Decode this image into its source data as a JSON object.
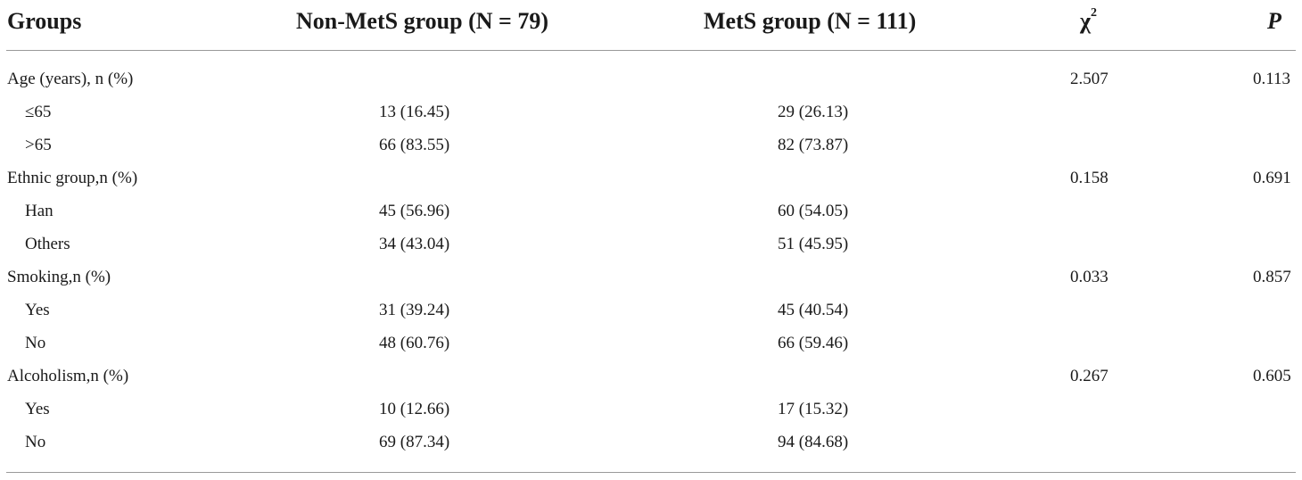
{
  "table": {
    "headers": {
      "groups": "Groups",
      "non_mets": "Non-MetS group (N = 79)",
      "mets": "MetS group (N = 111)",
      "chi_symbol": "χ",
      "chi_exp": "2",
      "p": "P"
    },
    "rows": [
      {
        "label": "Age (years), n (%)",
        "non_mets": "",
        "mets": "",
        "chi2": "2.507",
        "p": "0.113"
      },
      {
        "label": "≤65",
        "non_mets": "13 (16.45)",
        "mets": "29 (26.13)",
        "chi2": "",
        "p": ""
      },
      {
        "label": ">65",
        "non_mets": "66 (83.55)",
        "mets": "82 (73.87)",
        "chi2": "",
        "p": ""
      },
      {
        "label": "Ethnic group,n (%)",
        "non_mets": "",
        "mets": "",
        "chi2": "0.158",
        "p": "0.691"
      },
      {
        "label": "Han",
        "non_mets": "45 (56.96)",
        "mets": "60 (54.05)",
        "chi2": "",
        "p": ""
      },
      {
        "label": "Others",
        "non_mets": "34 (43.04)",
        "mets": "51 (45.95)",
        "chi2": "",
        "p": ""
      },
      {
        "label": "Smoking,n (%)",
        "non_mets": "",
        "mets": "",
        "chi2": "0.033",
        "p": "0.857"
      },
      {
        "label": "Yes",
        "non_mets": "31 (39.24)",
        "mets": "45 (40.54)",
        "chi2": "",
        "p": ""
      },
      {
        "label": "No",
        "non_mets": "48 (60.76)",
        "mets": "66 (59.46)",
        "chi2": "",
        "p": ""
      },
      {
        "label": "Alcoholism,n (%)",
        "non_mets": "",
        "mets": "",
        "chi2": "0.267",
        "p": "0.605"
      },
      {
        "label": "Yes",
        "non_mets": "10 (12.66)",
        "mets": "17 (15.32)",
        "chi2": "",
        "p": ""
      },
      {
        "label": "No",
        "non_mets": "69 (87.34)",
        "mets": "94 (84.68)",
        "chi2": "",
        "p": ""
      }
    ]
  }
}
